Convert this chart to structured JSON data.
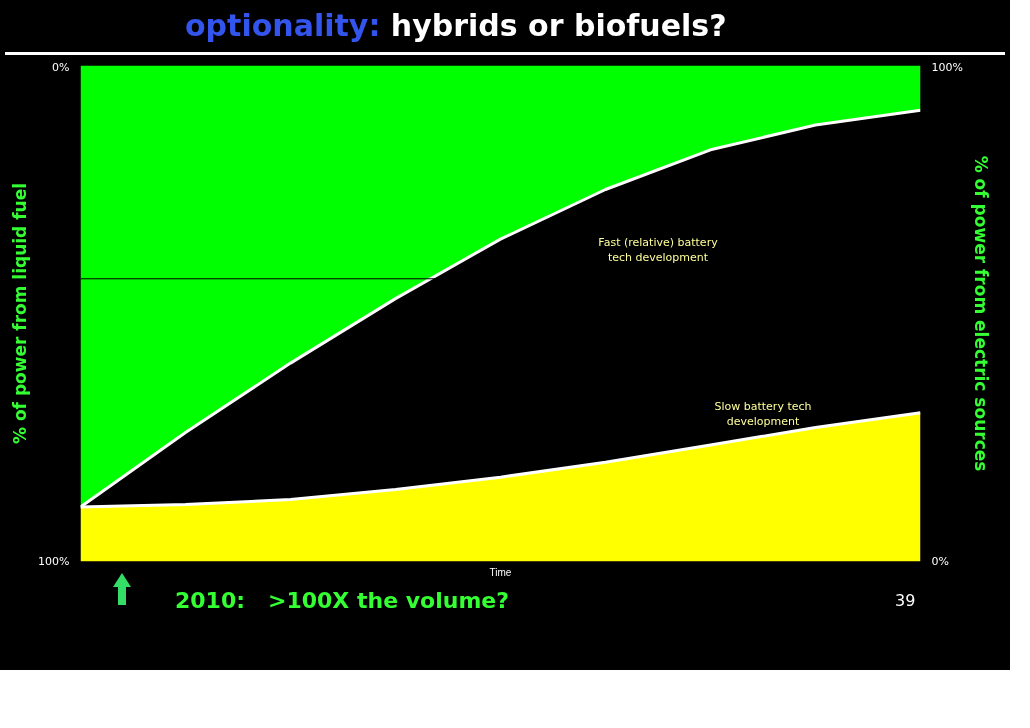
{
  "chart_data": {
    "type": "area",
    "stacked": true,
    "title": "optionality: hybrids or biofuels?",
    "xlabel": "Time",
    "ylabel": "% of power from liquid fuel",
    "y2label": "% of power from electric sources",
    "categories": [
      null,
      null,
      null,
      null,
      null,
      null,
      null,
      null,
      null
    ],
    "ylim": [
      100,
      0
    ],
    "yticks": [
      {
        "value": 0,
        "label": "0%"
      },
      {
        "value": 100,
        "label": "100%"
      }
    ],
    "y2lim": [
      0,
      100
    ],
    "y2ticks": [
      {
        "value": 0,
        "label": "0%"
      },
      {
        "value": 100,
        "label": "100%"
      }
    ],
    "series": [
      {
        "color": "#ffff00",
        "axis": "y2",
        "values": [
          11,
          11.5,
          12.5,
          14.5,
          17,
          20,
          23.5,
          27,
          30
        ]
      },
      {
        "color": "#000000",
        "axis": "y2",
        "values": [
          0,
          14.5,
          27.5,
          38.5,
          48,
          55,
          59.5,
          61,
          61
        ]
      },
      {
        "color": "#00ff00",
        "axis": "y2",
        "values": [
          89,
          74,
          60,
          47,
          35,
          25,
          17,
          12,
          9
        ]
      }
    ],
    "ref_lines": [
      {
        "axis": "y2",
        "value": 57,
        "color": "#000000"
      }
    ],
    "annotations": [
      "Fast (relative) battery tech development",
      "Slow battery tech development",
      "2010:   >100X the volume?",
      "39"
    ]
  }
}
